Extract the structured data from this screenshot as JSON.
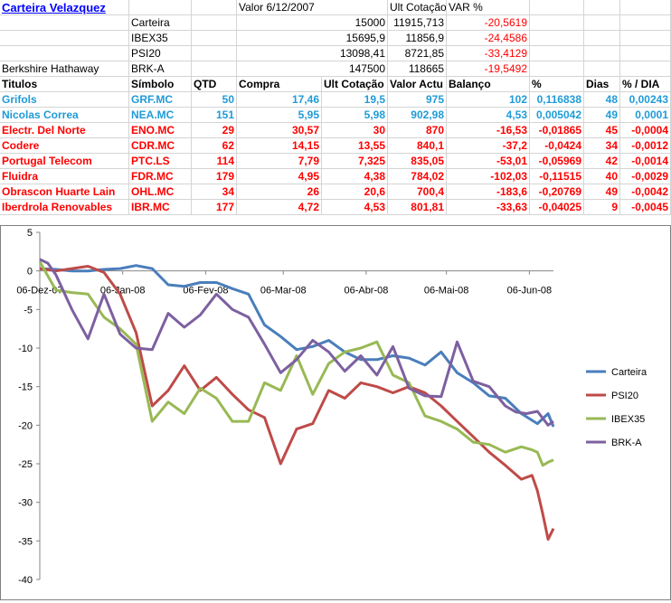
{
  "sheet": {
    "title": "Carteira Velazquez",
    "header_valor": "Valor 6/12/2007",
    "header_ult": "Ult Cotação",
    "header_var": "VAR %",
    "summary": [
      {
        "label": "",
        "name": "Carteira",
        "valor": "15000",
        "ult": "11915,713",
        "var": "-20,5619"
      },
      {
        "label": "",
        "name": "IBEX35",
        "valor": "15695,9",
        "ult": "11856,9",
        "var": "-24,4586"
      },
      {
        "label": "",
        "name": "PSI20",
        "valor": "13098,41",
        "ult": "8721,85",
        "var": "-33,4129"
      },
      {
        "label": "Berkshire Hathaway",
        "name": "BRK-A",
        "valor": "147500",
        "ult": "118665",
        "var": "-19,5492"
      }
    ],
    "columns": [
      "Titulos",
      "Símbolo",
      "QTD",
      "Compra",
      "Ult Cotação",
      "Valor Actu",
      "Balanço",
      "%",
      "Dias",
      "% / DIA"
    ],
    "rows": [
      {
        "titulo": "Grifols",
        "simbolo": "GRF.MC",
        "qtd": "50",
        "compra": "17,46",
        "ult": "19,5",
        "valor": "975",
        "balanco": "102",
        "pct": "0,116838",
        "dias": "48",
        "pdia": "0,00243",
        "color": "blue"
      },
      {
        "titulo": "Nicolas Correa",
        "simbolo": "NEA.MC",
        "qtd": "151",
        "compra": "5,95",
        "ult": "5,98",
        "valor": "902,98",
        "balanco": "4,53",
        "pct": "0,005042",
        "dias": "49",
        "pdia": "0,0001",
        "color": "blue"
      },
      {
        "titulo": "Electr. Del Norte",
        "simbolo": "ENO.MC",
        "qtd": "29",
        "compra": "30,57",
        "ult": "30",
        "valor": "870",
        "balanco": "-16,53",
        "pct": "-0,01865",
        "dias": "45",
        "pdia": "-0,0004",
        "color": "red"
      },
      {
        "titulo": "Codere",
        "simbolo": "CDR.MC",
        "qtd": "62",
        "compra": "14,15",
        "ult": "13,55",
        "valor": "840,1",
        "balanco": "-37,2",
        "pct": "-0,0424",
        "dias": "34",
        "pdia": "-0,0012",
        "color": "red"
      },
      {
        "titulo": "Portugal Telecom",
        "simbolo": "PTC.LS",
        "qtd": "114",
        "compra": "7,79",
        "ult": "7,325",
        "valor": "835,05",
        "balanco": "-53,01",
        "pct": "-0,05969",
        "dias": "42",
        "pdia": "-0,0014",
        "color": "red"
      },
      {
        "titulo": "Fluidra",
        "simbolo": "FDR.MC",
        "qtd": "179",
        "compra": "4,95",
        "ult": "4,38",
        "valor": "784,02",
        "balanco": "-102,03",
        "pct": "-0,11515",
        "dias": "40",
        "pdia": "-0,0029",
        "color": "red"
      },
      {
        "titulo": "Obrascon Huarte Lain",
        "simbolo": "OHL.MC",
        "qtd": "34",
        "compra": "26",
        "ult": "20,6",
        "valor": "700,4",
        "balanco": "-183,6",
        "pct": "-0,20769",
        "dias": "49",
        "pdia": "-0,0042",
        "color": "red"
      },
      {
        "titulo": "Iberdrola Renovables",
        "simbolo": "IBR.MC",
        "qtd": "177",
        "compra": "4,72",
        "ult": "4,53",
        "valor": "801,81",
        "balanco": "-33,63",
        "pct": "-0,04025",
        "dias": "9",
        "pdia": "-0,0045",
        "color": "red"
      }
    ]
  },
  "chart_data": {
    "type": "line",
    "ylim": [
      -40,
      5
    ],
    "yticks": [
      5,
      0,
      -5,
      -10,
      -15,
      -20,
      -25,
      -30,
      -35,
      -40
    ],
    "xtick_labels": [
      "06-Dez-07",
      "06-Jan-08",
      "06-Fev-08",
      "06-Mar-08",
      "06-Abr-08",
      "06-Mai-08",
      "06-Jun-08"
    ],
    "x_range": [
      0,
      192
    ],
    "xtick_positions": [
      0,
      31,
      62,
      91,
      122,
      152,
      183
    ],
    "legend_position": "right",
    "series": [
      {
        "name": "Carteira",
        "color": "#4a7ebb",
        "x": [
          0,
          6,
          12,
          18,
          24,
          30,
          36,
          42,
          48,
          54,
          60,
          66,
          72,
          78,
          84,
          90,
          96,
          102,
          108,
          114,
          120,
          126,
          132,
          138,
          144,
          150,
          156,
          162,
          168,
          174,
          180,
          186,
          190,
          192
        ],
        "y": [
          0.3,
          0.2,
          0,
          0,
          0.2,
          0.3,
          0.7,
          0.3,
          -1.8,
          -2,
          -1.5,
          -1.5,
          -2.3,
          -3,
          -7,
          -8.5,
          -10.2,
          -9.8,
          -9,
          -10.5,
          -11.5,
          -11.5,
          -11,
          -11.3,
          -12.2,
          -10.5,
          -13.2,
          -14.5,
          -16.2,
          -16.5,
          -18.5,
          -19.8,
          -18.5,
          -20.2
        ]
      },
      {
        "name": "PSI20",
        "color": "#be4b48",
        "x": [
          0,
          6,
          12,
          18,
          24,
          30,
          36,
          42,
          48,
          54,
          60,
          66,
          72,
          78,
          84,
          90,
          96,
          102,
          108,
          114,
          120,
          126,
          132,
          138,
          144,
          150,
          156,
          162,
          168,
          174,
          180,
          184,
          186,
          188,
          190,
          192
        ],
        "y": [
          0.3,
          0,
          0.3,
          0.6,
          -0.2,
          -3,
          -8,
          -17.5,
          -15.5,
          -12.3,
          -15.5,
          -13.8,
          -16,
          -18,
          -19,
          -25,
          -20.5,
          -19.8,
          -15.5,
          -16.5,
          -14.5,
          -15,
          -15.8,
          -15,
          -15.8,
          -17.5,
          -19.5,
          -21.5,
          -23.5,
          -25.2,
          -27,
          -26.5,
          -28.5,
          -31.5,
          -34.8,
          -33.4
        ]
      },
      {
        "name": "IBEX35",
        "color": "#98b954",
        "x": [
          0,
          6,
          12,
          18,
          24,
          30,
          36,
          42,
          48,
          54,
          60,
          66,
          72,
          78,
          84,
          90,
          96,
          102,
          108,
          114,
          120,
          126,
          132,
          138,
          144,
          150,
          156,
          162,
          168,
          174,
          180,
          184,
          186,
          188,
          190,
          192
        ],
        "y": [
          1.2,
          -2.5,
          -2.8,
          -3,
          -6,
          -7.5,
          -9.5,
          -19.5,
          -17,
          -18.5,
          -15.2,
          -16.5,
          -19.5,
          -19.5,
          -14.5,
          -15.5,
          -11,
          -16,
          -12,
          -10.5,
          -10,
          -9.2,
          -13.5,
          -14.5,
          -18.8,
          -19.5,
          -20.5,
          -22.2,
          -22.5,
          -23.5,
          -22.8,
          -23.2,
          -23.5,
          -25.2,
          -24.8,
          -24.5
        ]
      },
      {
        "name": "BRK-A",
        "color": "#7d60a0",
        "x": [
          0,
          3,
          6,
          12,
          18,
          24,
          30,
          36,
          42,
          48,
          54,
          60,
          66,
          72,
          78,
          84,
          90,
          96,
          102,
          108,
          114,
          120,
          126,
          132,
          138,
          144,
          150,
          156,
          162,
          168,
          174,
          178,
          182,
          186,
          190,
          192
        ],
        "y": [
          1.5,
          1,
          -0.5,
          -5,
          -8.8,
          -3,
          -8.2,
          -10,
          -10.2,
          -5.5,
          -7.3,
          -5.7,
          -3,
          -5,
          -6,
          -9.5,
          -13.2,
          -11.5,
          -9,
          -10.5,
          -13,
          -11,
          -13.5,
          -9.8,
          -15.2,
          -16.2,
          -16.3,
          -9.2,
          -14.3,
          -15,
          -17.5,
          -18.3,
          -18.5,
          -18.2,
          -20,
          -19.5
        ]
      }
    ]
  }
}
